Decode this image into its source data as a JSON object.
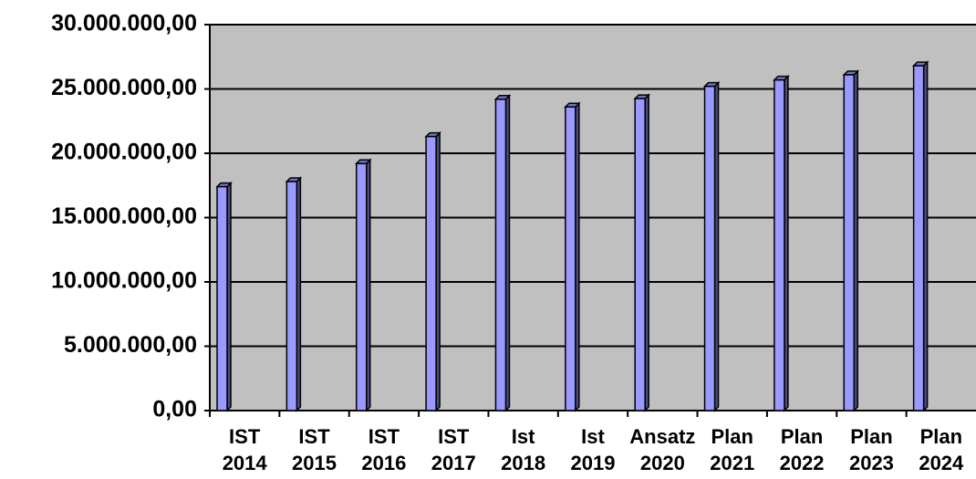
{
  "chart_data": {
    "type": "bar",
    "categories": [
      "IST 2014",
      "IST 2015",
      "IST 2016",
      "IST 2017",
      "Ist 2018",
      "Ist 2019",
      "Ansatz 2020",
      "Plan 2021",
      "Plan 2022",
      "Plan 2023",
      "Plan 2024"
    ],
    "values": [
      17400000,
      17800000,
      19200000,
      21300000,
      24200000,
      23600000,
      24250000,
      25200000,
      25700000,
      26100000,
      26800000
    ],
    "color": "#9999ff",
    "ylim": [
      0,
      30000000
    ],
    "yticks": [
      {
        "value": 0,
        "label": "0,00"
      },
      {
        "value": 5000000,
        "label": "5.000.000,00"
      },
      {
        "value": 10000000,
        "label": "10.000.000,00"
      },
      {
        "value": 15000000,
        "label": "15.000.000,00"
      },
      {
        "value": 20000000,
        "label": "20.000.000,00"
      },
      {
        "value": 25000000,
        "label": "25.000.000,00"
      },
      {
        "value": 30000000,
        "label": "30.000.000,00"
      }
    ],
    "grid": true
  }
}
